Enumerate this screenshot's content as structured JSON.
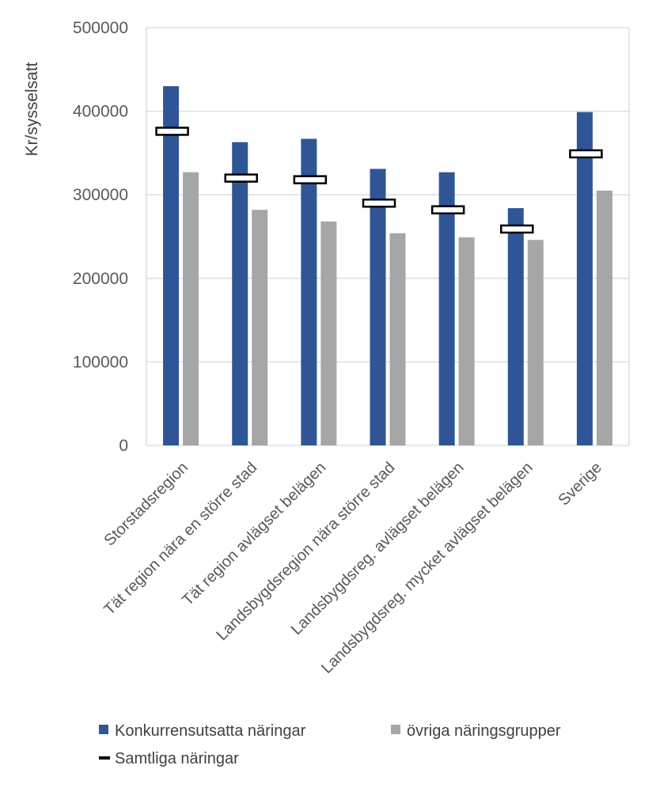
{
  "chart_data": {
    "type": "bar",
    "title": "",
    "xlabel": "",
    "ylabel": "Kr/sysselsatt",
    "ylim": [
      0,
      500000
    ],
    "yticks": [
      0,
      100000,
      200000,
      300000,
      400000,
      500000
    ],
    "grid": true,
    "legend_position": "bottom",
    "categories": [
      "Storstadsregion",
      "Tät region nära en större stad",
      "Tät region avlägset belägen",
      "Landsbygdsregion nära större stad",
      "Landsbygdsreg. avlägset belägen",
      "Landsbygdsreg. mycket avlägset belägen",
      "Sverige"
    ],
    "series": [
      {
        "name": "Konkurrensutsatta näringar",
        "kind": "bar",
        "color": "#2f5597",
        "values": [
          430000,
          363000,
          367000,
          331000,
          327000,
          284000,
          399000
        ]
      },
      {
        "name": "övriga näringsgrupper",
        "kind": "bar",
        "color": "#a6a6a6",
        "values": [
          327000,
          282000,
          268000,
          254000,
          249000,
          246000,
          305000
        ]
      },
      {
        "name": "Samtliga näringar",
        "kind": "marker",
        "color": "#000000",
        "values": [
          376000,
          320000,
          318000,
          290000,
          282000,
          259000,
          349000
        ]
      }
    ]
  }
}
